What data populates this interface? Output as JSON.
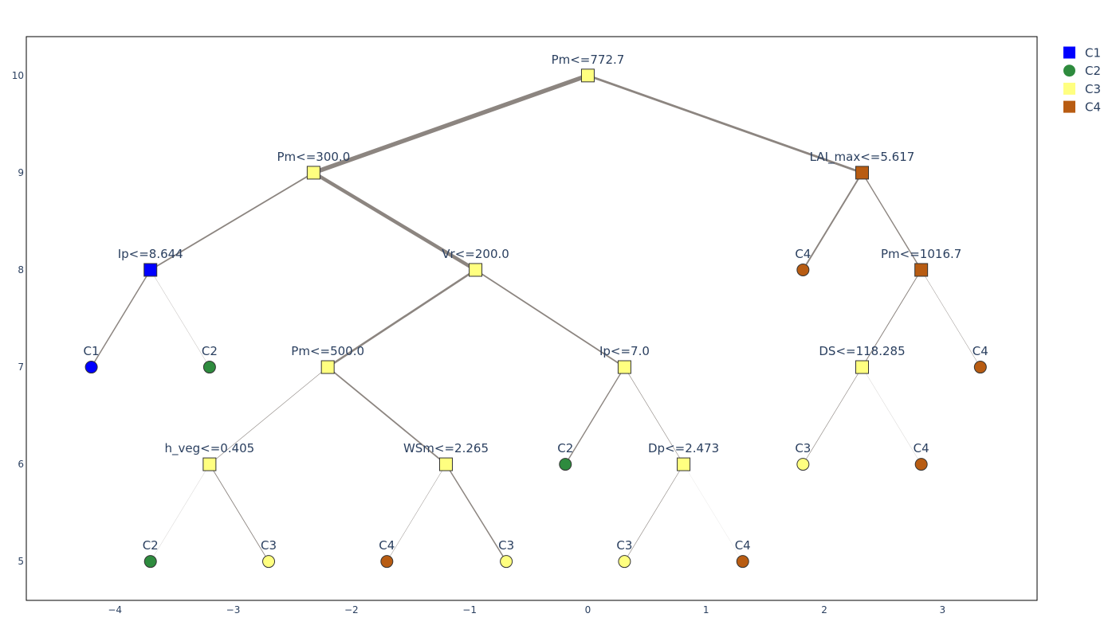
{
  "chart_data": {
    "type": "scatter",
    "subtype": "decision-tree",
    "title": "",
    "xlabel": "",
    "ylabel": "",
    "xlim": [
      -4.75,
      3.8
    ],
    "ylim": [
      4.6,
      10.4
    ],
    "x_ticks": [
      -4,
      -3,
      -2,
      -1,
      0,
      1,
      2,
      3
    ],
    "x_tick_labels": [
      "−4",
      "−3",
      "−2",
      "−1",
      "0",
      "1",
      "2",
      "3"
    ],
    "y_ticks": [
      5,
      6,
      7,
      8,
      9,
      10
    ],
    "y_tick_labels": [
      "5",
      "6",
      "7",
      "8",
      "9",
      "10"
    ],
    "grid": false,
    "legend_position": "top-right",
    "edge_color": "#8c8580",
    "class_colors": {
      "C1": "#0000ff",
      "C2": "#2e8b3e",
      "C3": "#ffff80",
      "C4": "#b85c12"
    },
    "legend": [
      {
        "name": "C1",
        "symbol": "square"
      },
      {
        "name": "C2",
        "symbol": "circle"
      },
      {
        "name": "C3",
        "symbol": "square"
      },
      {
        "name": "C4",
        "symbol": "square"
      }
    ],
    "nodes": [
      {
        "id": "n0",
        "x": 0.0,
        "y": 10,
        "label": "Pm<=772.7",
        "cls": "C3",
        "shape": "square"
      },
      {
        "id": "n1",
        "x": -2.32,
        "y": 9,
        "label": "Pm<=300.0",
        "cls": "C3",
        "shape": "square"
      },
      {
        "id": "n2",
        "x": 2.32,
        "y": 9,
        "label": "LAI_max<=5.617",
        "cls": "C4",
        "shape": "square"
      },
      {
        "id": "n3",
        "x": -3.7,
        "y": 8,
        "label": "Ip<=8.644",
        "cls": "C1",
        "shape": "square"
      },
      {
        "id": "n4",
        "x": -0.95,
        "y": 8,
        "label": "Vr<=200.0",
        "cls": "C3",
        "shape": "square"
      },
      {
        "id": "n5",
        "x": 1.82,
        "y": 8,
        "label": "C4",
        "cls": "C4",
        "shape": "circle"
      },
      {
        "id": "n6",
        "x": 2.82,
        "y": 8,
        "label": "Pm<=1016.7",
        "cls": "C4",
        "shape": "square"
      },
      {
        "id": "n7",
        "x": -4.2,
        "y": 7,
        "label": "C1",
        "cls": "C1",
        "shape": "circle"
      },
      {
        "id": "n8",
        "x": -3.2,
        "y": 7,
        "label": "C2",
        "cls": "C2",
        "shape": "circle"
      },
      {
        "id": "n9",
        "x": -2.2,
        "y": 7,
        "label": "Pm<=500.0",
        "cls": "C3",
        "shape": "square"
      },
      {
        "id": "n10",
        "x": 0.31,
        "y": 7,
        "label": "Ip<=7.0",
        "cls": "C3",
        "shape": "square"
      },
      {
        "id": "n11",
        "x": 2.32,
        "y": 7,
        "label": "DS<=118.285",
        "cls": "C3",
        "shape": "square"
      },
      {
        "id": "n12",
        "x": 3.32,
        "y": 7,
        "label": "C4",
        "cls": "C4",
        "shape": "circle"
      },
      {
        "id": "n13",
        "x": -3.2,
        "y": 6,
        "label": "h_veg<=0.405",
        "cls": "C3",
        "shape": "square"
      },
      {
        "id": "n14",
        "x": -1.2,
        "y": 6,
        "label": "WSm<=2.265",
        "cls": "C3",
        "shape": "square"
      },
      {
        "id": "n15",
        "x": -0.19,
        "y": 6,
        "label": "C2",
        "cls": "C2",
        "shape": "circle"
      },
      {
        "id": "n16",
        "x": 0.81,
        "y": 6,
        "label": "Dp<=2.473",
        "cls": "C3",
        "shape": "square"
      },
      {
        "id": "n17",
        "x": 1.82,
        "y": 6,
        "label": "C3",
        "cls": "C3",
        "shape": "circle"
      },
      {
        "id": "n18",
        "x": 2.82,
        "y": 6,
        "label": "C4",
        "cls": "C4",
        "shape": "circle"
      },
      {
        "id": "n19",
        "x": -3.7,
        "y": 5,
        "label": "C2",
        "cls": "C2",
        "shape": "circle"
      },
      {
        "id": "n20",
        "x": -2.7,
        "y": 5,
        "label": "C3",
        "cls": "C3",
        "shape": "circle"
      },
      {
        "id": "n21",
        "x": -1.7,
        "y": 5,
        "label": "C4",
        "cls": "C4",
        "shape": "circle"
      },
      {
        "id": "n22",
        "x": -0.69,
        "y": 5,
        "label": "C3",
        "cls": "C3",
        "shape": "circle"
      },
      {
        "id": "n23",
        "x": 0.31,
        "y": 5,
        "label": "C3",
        "cls": "C3",
        "shape": "circle"
      },
      {
        "id": "n24",
        "x": 1.31,
        "y": 5,
        "label": "C4",
        "cls": "C4",
        "shape": "circle"
      }
    ],
    "edges": [
      {
        "from": "n0",
        "to": "n1",
        "weight": 5.5
      },
      {
        "from": "n0",
        "to": "n2",
        "weight": 2.8
      },
      {
        "from": "n1",
        "to": "n3",
        "weight": 1.8
      },
      {
        "from": "n1",
        "to": "n4",
        "weight": 4.5
      },
      {
        "from": "n2",
        "to": "n5",
        "weight": 2.0
      },
      {
        "from": "n2",
        "to": "n6",
        "weight": 1.4
      },
      {
        "from": "n3",
        "to": "n7",
        "weight": 1.5
      },
      {
        "from": "n3",
        "to": "n8",
        "weight": 0.3
      },
      {
        "from": "n4",
        "to": "n9",
        "weight": 2.6
      },
      {
        "from": "n4",
        "to": "n10",
        "weight": 1.8
      },
      {
        "from": "n6",
        "to": "n11",
        "weight": 1.0
      },
      {
        "from": "n6",
        "to": "n12",
        "weight": 0.5
      },
      {
        "from": "n9",
        "to": "n13",
        "weight": 0.6
      },
      {
        "from": "n9",
        "to": "n14",
        "weight": 1.8
      },
      {
        "from": "n10",
        "to": "n15",
        "weight": 1.4
      },
      {
        "from": "n10",
        "to": "n16",
        "weight": 0.6
      },
      {
        "from": "n11",
        "to": "n17",
        "weight": 0.6
      },
      {
        "from": "n11",
        "to": "n18",
        "weight": 0.2
      },
      {
        "from": "n13",
        "to": "n19",
        "weight": 0.2
      },
      {
        "from": "n13",
        "to": "n20",
        "weight": 0.9
      },
      {
        "from": "n14",
        "to": "n21",
        "weight": 0.5
      },
      {
        "from": "n14",
        "to": "n22",
        "weight": 1.5
      },
      {
        "from": "n16",
        "to": "n23",
        "weight": 0.6
      },
      {
        "from": "n16",
        "to": "n24",
        "weight": 0.1
      }
    ]
  }
}
